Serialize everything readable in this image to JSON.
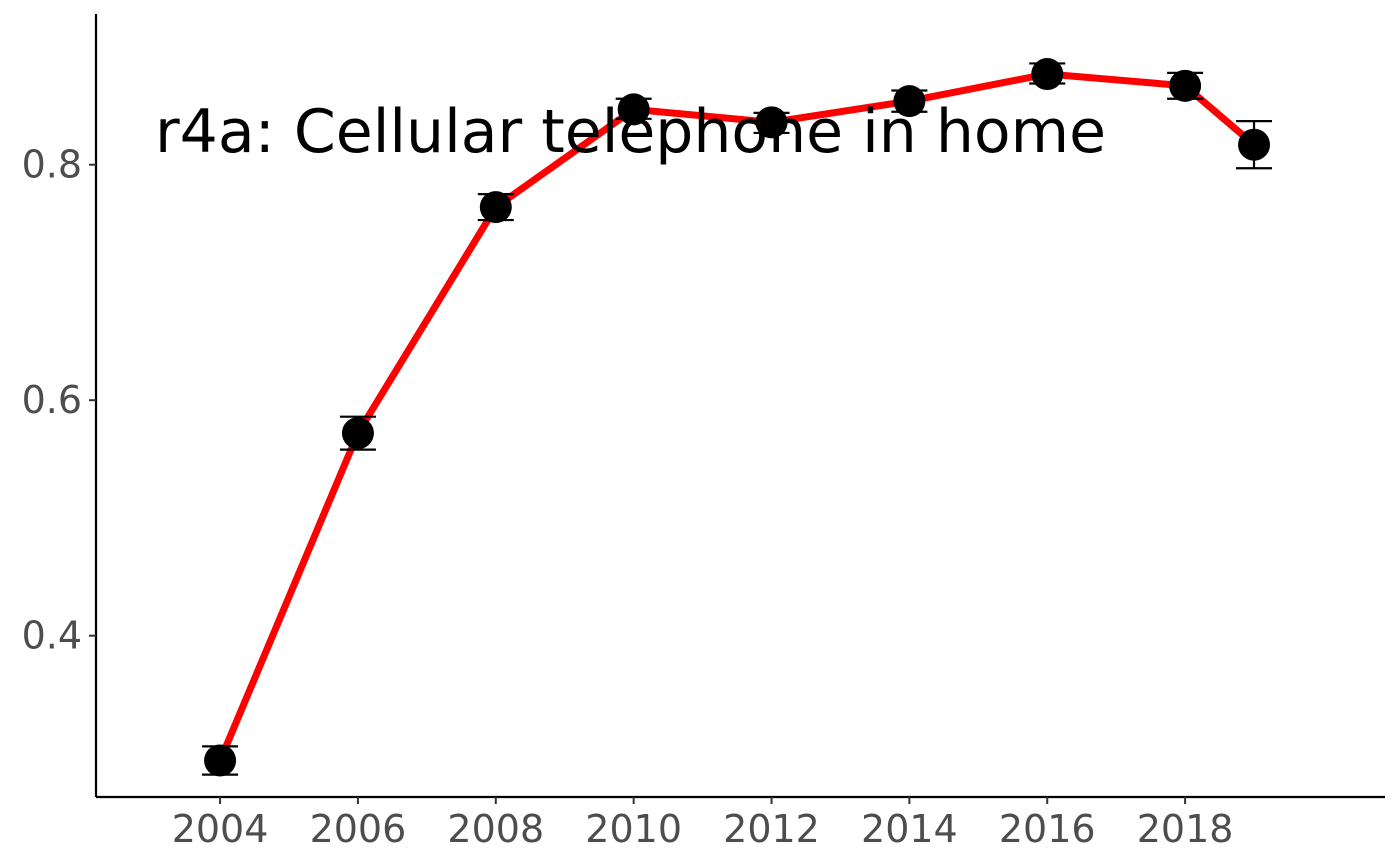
{
  "chart_data": {
    "type": "line",
    "title": "",
    "xlabel": "",
    "ylabel": "",
    "annotation": "r4a: Cellular telephone in home",
    "xlim": [
      2002.2,
      2020.9
    ],
    "ylim": [
      0.263,
      0.928
    ],
    "x_ticks": [
      2004,
      2006,
      2008,
      2010,
      2012,
      2014,
      2016,
      2018
    ],
    "y_ticks": [
      0.4,
      0.6,
      0.8
    ],
    "x_tick_labels": [
      "2004",
      "2006",
      "2008",
      "2010",
      "2012",
      "2014",
      "2016",
      "2018"
    ],
    "y_tick_labels": [
      "0.4",
      "0.6",
      "0.8"
    ],
    "grid": false,
    "line_color": "#ff0000",
    "point_color": "#000000",
    "series": [
      {
        "x": [
          2004,
          2006,
          2008,
          2010,
          2012,
          2014,
          2016,
          2018,
          2019
        ],
        "y": [
          0.294,
          0.572,
          0.764,
          0.847,
          0.836,
          0.854,
          0.877,
          0.867,
          0.817
        ],
        "ymin": [
          0.282,
          0.558,
          0.753,
          0.839,
          0.827,
          0.845,
          0.869,
          0.856,
          0.797
        ],
        "ymax": [
          0.306,
          0.586,
          0.775,
          0.856,
          0.844,
          0.863,
          0.886,
          0.878,
          0.837
        ]
      }
    ]
  }
}
